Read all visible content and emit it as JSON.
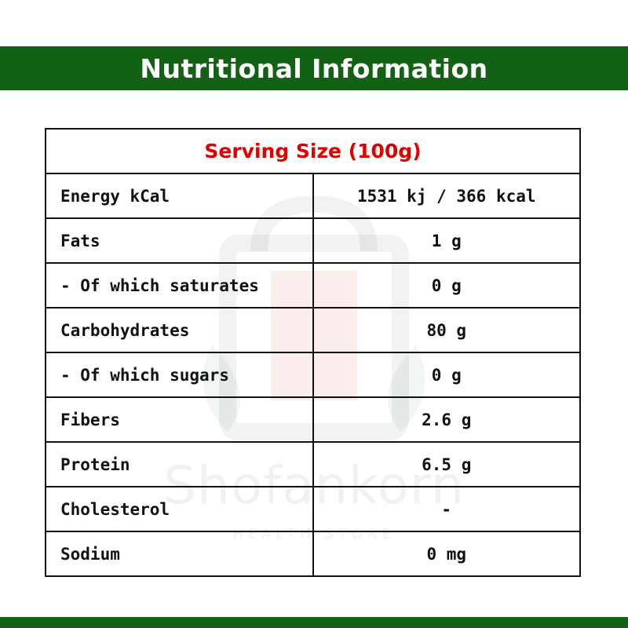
{
  "header": {
    "title": "Nutritional Information"
  },
  "watermark": {
    "brand": "Shofankorn",
    "tagline": "HEALTH STORE"
  },
  "table": {
    "serving_size": "Serving Size (100g)",
    "rows": [
      {
        "label": "Energy kCal",
        "value": "1531 kj / 366 kcal"
      },
      {
        "label": "Fats",
        "value": "1 g"
      },
      {
        "label": "- Of which saturates",
        "value": "0 g"
      },
      {
        "label": "Carbohydrates",
        "value": "80 g"
      },
      {
        "label": "- Of which sugars",
        "value": "0 g"
      },
      {
        "label": "Fibers",
        "value": "2.6 g"
      },
      {
        "label": "Protein",
        "value": "6.5 g"
      },
      {
        "label": "Cholesterol",
        "value": "-"
      },
      {
        "label": "Sodium",
        "value": "0 mg"
      }
    ]
  },
  "colors": {
    "header_green": "#136114",
    "serving_red": "#e00000",
    "border": "#111111"
  }
}
